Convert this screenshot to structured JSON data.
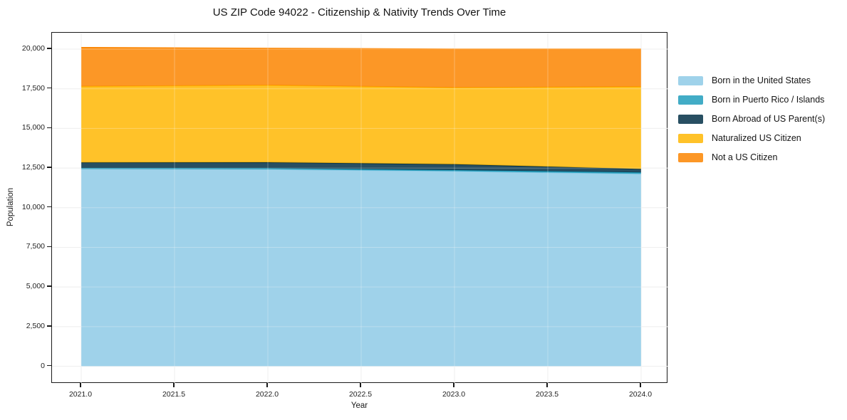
{
  "title": "US ZIP Code 94022 - Citizenship & Nativity Trends Over Time",
  "chart_data": {
    "type": "area",
    "stacked": true,
    "title": "US ZIP Code 94022 - Citizenship & Nativity Trends Over Time",
    "xlabel": "Year",
    "ylabel": "Population",
    "x": [
      2021,
      2022,
      2023,
      2024
    ],
    "series": [
      {
        "name": "Born in the United States",
        "color": "#8ecae6",
        "values": [
          12440,
          12420,
          12300,
          12130
        ]
      },
      {
        "name": "Born in Puerto Rico / Islands",
        "color": "#219ebc",
        "values": [
          60,
          70,
          70,
          90
        ]
      },
      {
        "name": "Born Abroad of US Parent(s)",
        "color": "#023047",
        "values": [
          350,
          370,
          370,
          220
        ]
      },
      {
        "name": "Naturalized US Citizen",
        "color": "#ffb703",
        "values": [
          4800,
          4860,
          4830,
          5190
        ]
      },
      {
        "name": "Not a US Citizen",
        "color": "#fb8500",
        "values": [
          2450,
          2330,
          2430,
          2370
        ]
      }
    ],
    "xlim": [
      2021,
      2024
    ],
    "ylim": [
      0,
      20000
    ],
    "x_ticks": {
      "values": [
        2021.0,
        2021.5,
        2022.0,
        2022.5,
        2023.0,
        2023.5,
        2024.0
      ],
      "labels": [
        "2021.0",
        "2021.5",
        "2022.0",
        "2022.5",
        "2023.0",
        "2023.5",
        "2024.0"
      ]
    },
    "y_ticks": {
      "values": [
        0,
        2500,
        5000,
        7500,
        10000,
        12500,
        15000,
        17500,
        20000
      ],
      "labels": [
        "0",
        "2,500",
        "5,000",
        "7,500",
        "10,000",
        "12,500",
        "15,000",
        "17,500",
        "20,000"
      ]
    },
    "grid": true,
    "legend_position": "right",
    "fill_opacity": 0.85,
    "grid_color": "#e9e9e9",
    "spine_color": "#1a1a1a"
  }
}
